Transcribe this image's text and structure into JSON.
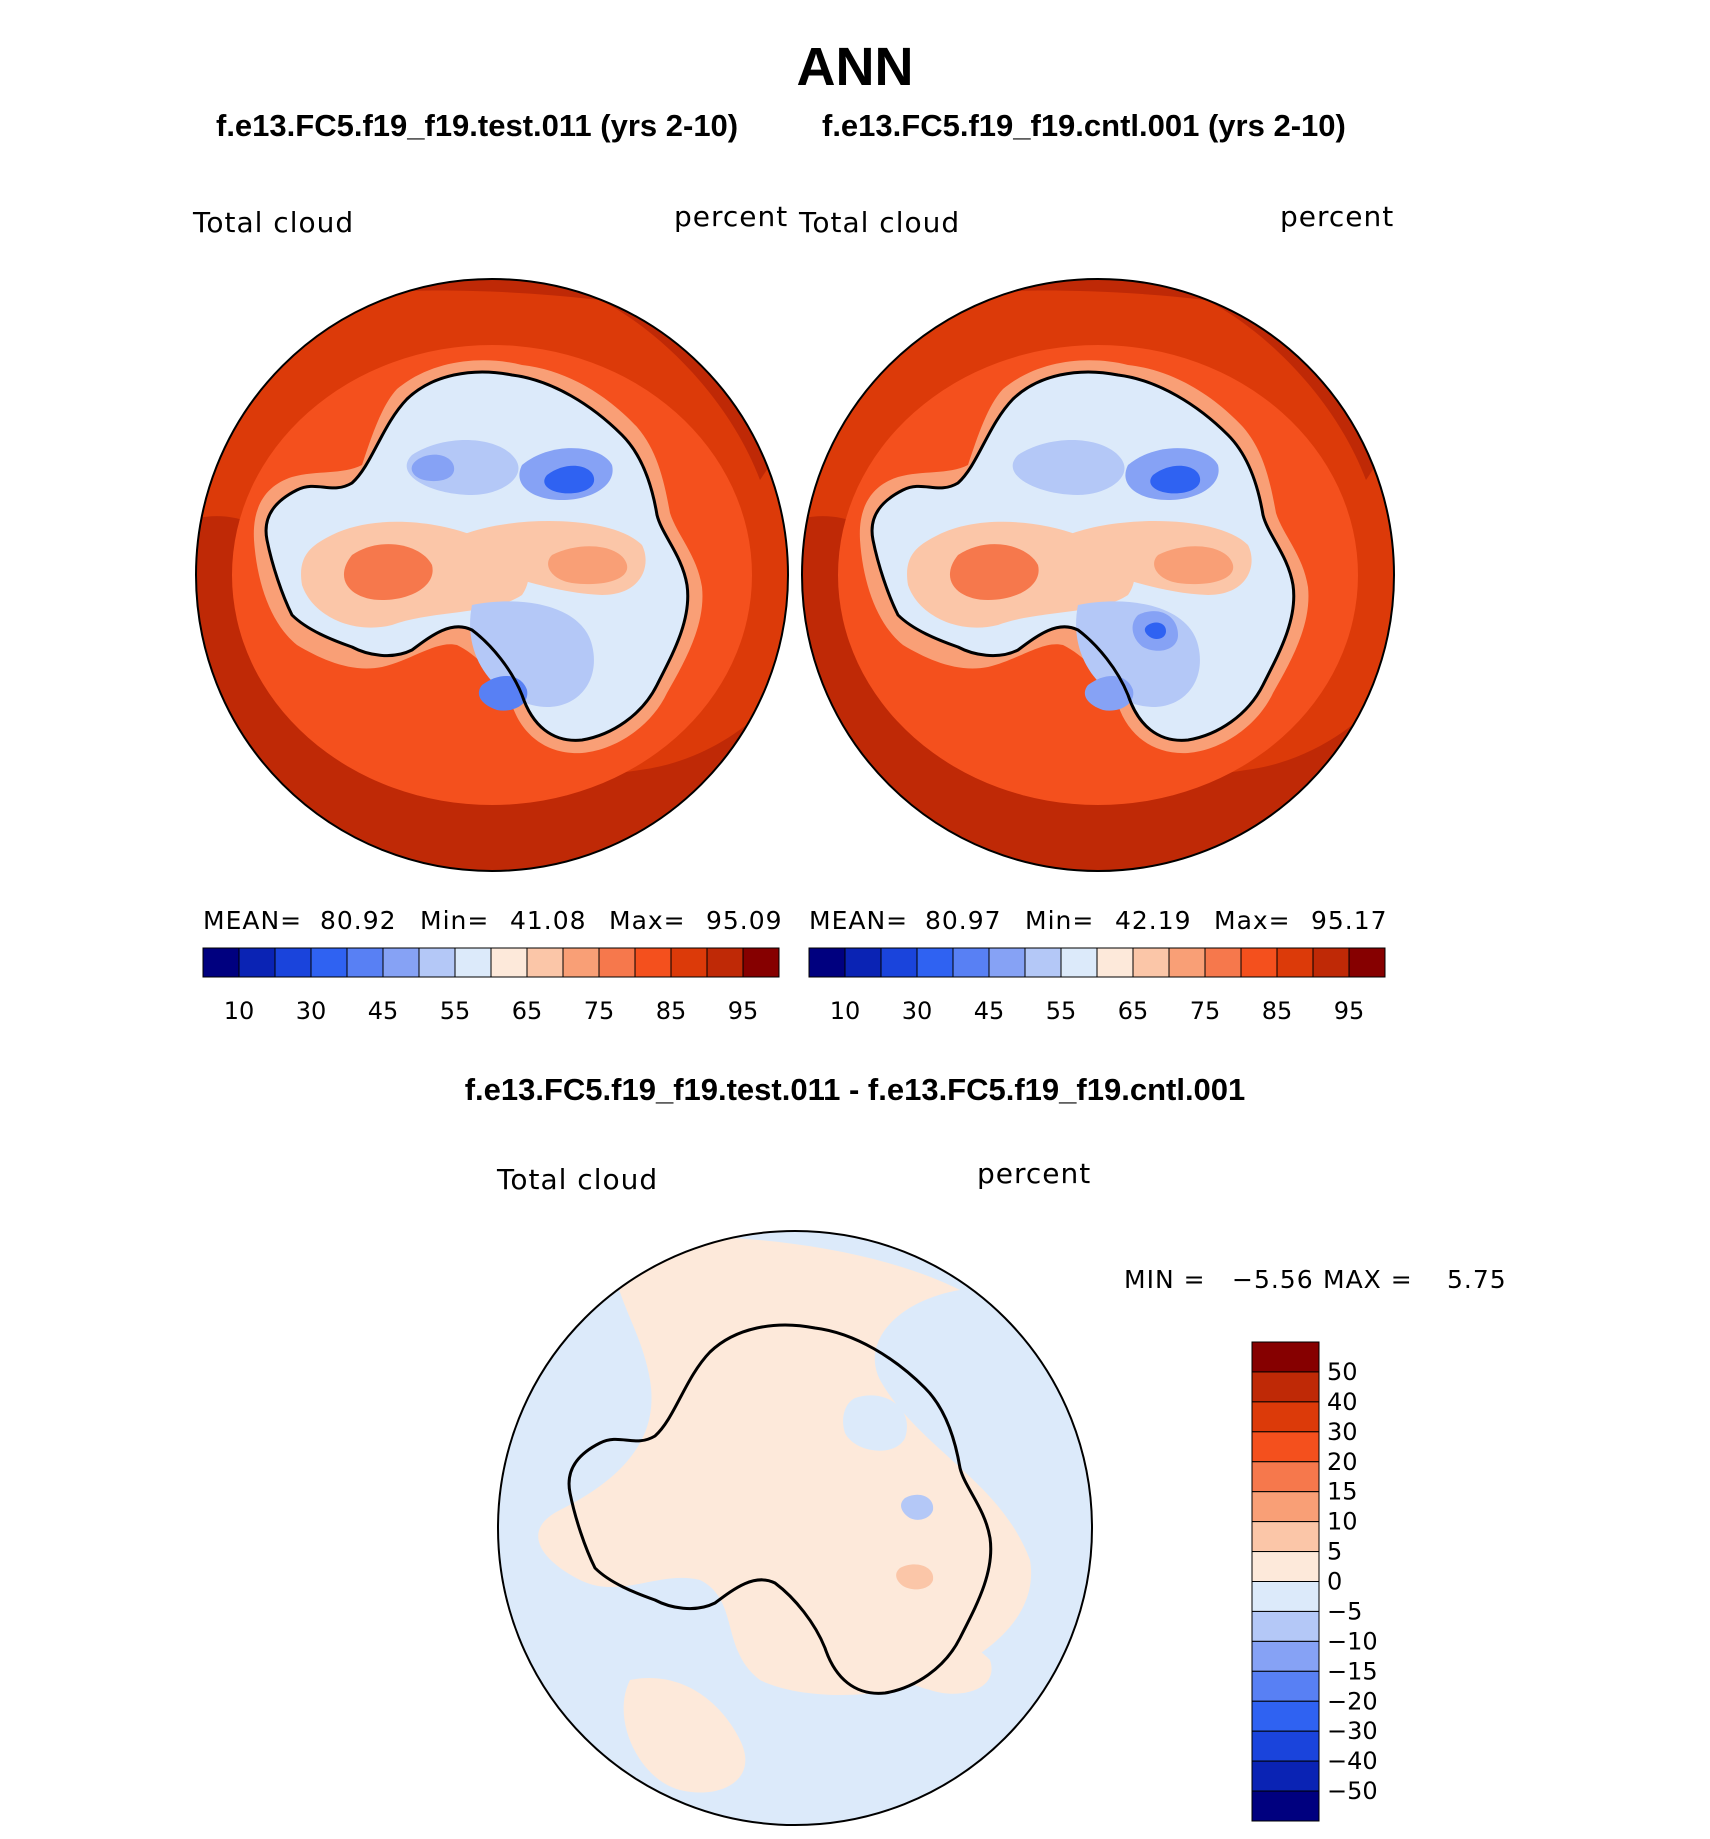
{
  "title": "ANN",
  "panels": [
    {
      "case_title": "f.e13.FC5.f19_f19.test.011 (yrs 2-10)",
      "left_label": "Total cloud",
      "right_label": "percent",
      "stats": {
        "mean_label": "MEAN=",
        "mean": "80.92",
        "min_label": "Min=",
        "min": "41.08",
        "max_label": "Max=",
        "max": "95.09"
      }
    },
    {
      "case_title": "f.e13.FC5.f19_f19.cntl.001 (yrs 2-10)",
      "left_label": "Total cloud",
      "right_label": "percent",
      "stats": {
        "mean_label": "MEAN=",
        "mean": "80.97",
        "min_label": "Min=",
        "min": "42.19",
        "max_label": "Max=",
        "max": "95.17"
      }
    }
  ],
  "diff_panel": {
    "title": "f.e13.FC5.f19_f19.test.011 - f.e13.FC5.f19_f19.cntl.001",
    "left_label": "Total cloud",
    "right_label": "percent",
    "stats": {
      "min_label": "MIN =",
      "min": "−5.56",
      "max_label": "MAX =",
      "max": "5.75"
    }
  },
  "colorbar_abs": {
    "colors": [
      "#00007f",
      "#0a23b4",
      "#1a44dc",
      "#2f62f2",
      "#5880f4",
      "#86a2f5",
      "#b4c8f7",
      "#dceafa",
      "#fde9da",
      "#fbc6a8",
      "#f99f76",
      "#f6784c",
      "#f4501d",
      "#dc3a09",
      "#bf2906",
      "#860000"
    ],
    "tick_labels": [
      "10",
      "30",
      "45",
      "55",
      "65",
      "75",
      "85",
      "95"
    ]
  },
  "colorbar_diff": {
    "colors": [
      "#860000",
      "#bf2906",
      "#dc3a09",
      "#f4501d",
      "#f6784c",
      "#f99f76",
      "#fbc6a8",
      "#fde9da",
      "#dceafa",
      "#b4c8f7",
      "#86a2f5",
      "#5880f4",
      "#2f62f2",
      "#1a44dc",
      "#0a23b4",
      "#00007f"
    ],
    "tick_labels": [
      "50",
      "40",
      "30",
      "20",
      "15",
      "10",
      "5",
      "0",
      "−5",
      "−10",
      "−15",
      "−20",
      "−30",
      "−40",
      "−50"
    ]
  }
}
